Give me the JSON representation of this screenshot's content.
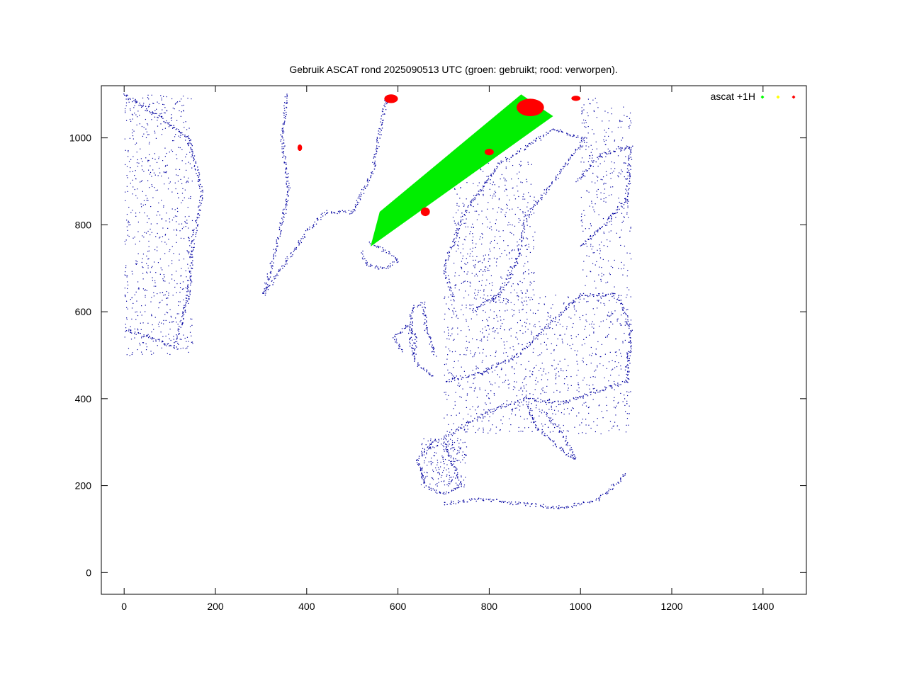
{
  "title": "Gebruik ASCAT rond 2025090513 UTC (groen: gebruikt; rood: verworpen).",
  "legend": {
    "label": "ascat +1H",
    "markers": [
      {
        "name": "gebruikt",
        "color": "#00ff00"
      },
      {
        "name": "",
        "color": "#ffff00"
      },
      {
        "name": "verworpen",
        "color": "#ff0000"
      }
    ]
  },
  "colors": {
    "coastline": "#0000a0",
    "used": "#00ee00",
    "rejected": "#ff0000",
    "frame": "#000000"
  },
  "chart_data": {
    "type": "scatter",
    "xlim": [
      -50,
      1495
    ],
    "ylim": [
      -50,
      1120
    ],
    "x_ticks": [
      0,
      200,
      400,
      600,
      800,
      1000,
      1200,
      1400
    ],
    "y_ticks": [
      0,
      200,
      400,
      600,
      800,
      1000
    ],
    "grid": false,
    "legend_position": "top-right",
    "swath_used": [
      [
        540,
        750
      ],
      [
        560,
        830
      ],
      [
        870,
        1100
      ],
      [
        940,
        1050
      ]
    ],
    "rejected_patches": [
      {
        "x": 860,
        "y": 1050,
        "w": 60,
        "h": 40
      },
      {
        "x": 650,
        "y": 820,
        "w": 20,
        "h": 20
      },
      {
        "x": 790,
        "y": 960,
        "w": 20,
        "h": 15
      },
      {
        "x": 570,
        "y": 1080,
        "w": 30,
        "h": 20
      },
      {
        "x": 380,
        "y": 970,
        "w": 10,
        "h": 15
      },
      {
        "x": 980,
        "y": 1085,
        "w": 20,
        "h": 12
      }
    ]
  }
}
